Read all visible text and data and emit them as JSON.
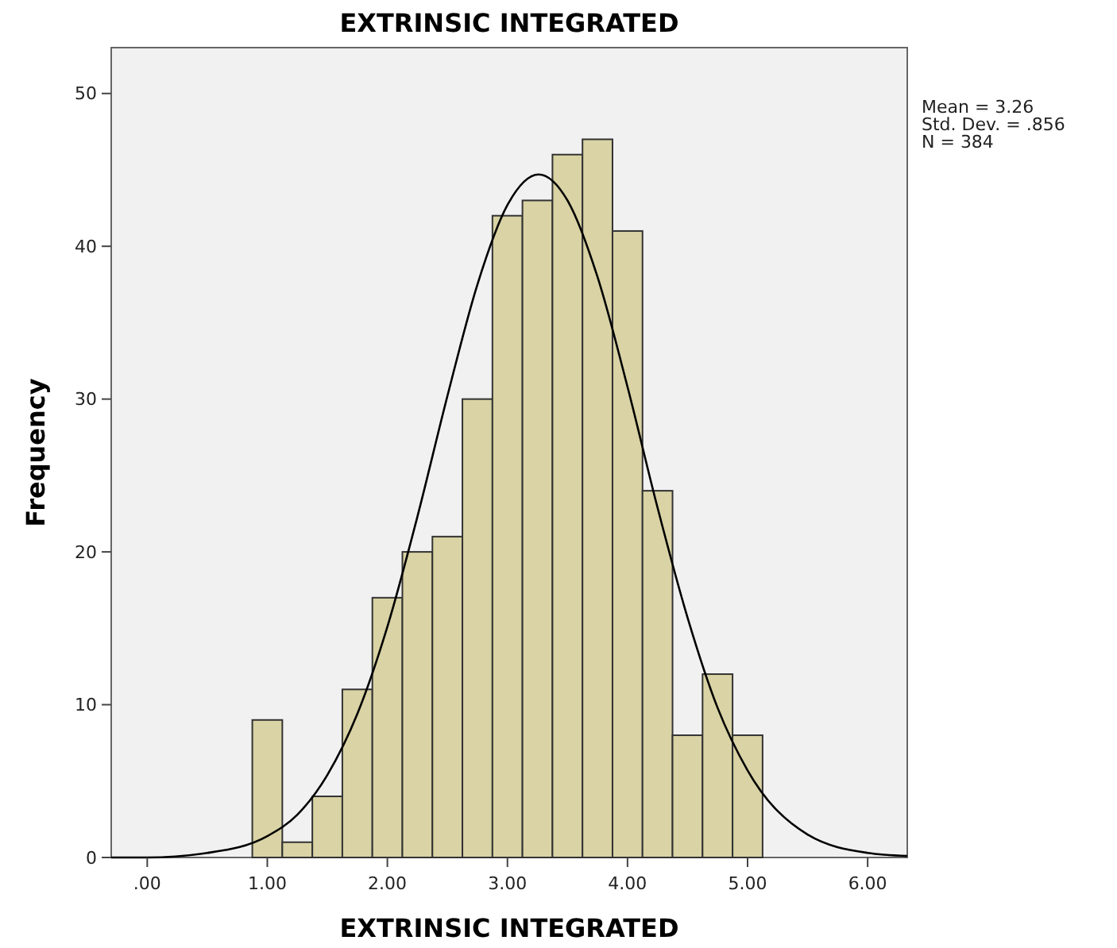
{
  "chart_data": {
    "type": "histogram",
    "title": "EXTRINSIC INTEGRATED",
    "xlabel": "EXTRINSIC INTEGRATED",
    "ylabel": "Frequency",
    "bins": [
      0.875,
      1.125,
      1.375,
      1.625,
      1.875,
      2.125,
      2.375,
      2.625,
      2.875,
      3.125,
      3.375,
      3.625,
      3.875,
      4.125,
      4.375,
      4.625,
      4.875,
      5.125
    ],
    "values": [
      9,
      1,
      4,
      11,
      17,
      20,
      21,
      30,
      42,
      43,
      46,
      47,
      41,
      24,
      8,
      12,
      8
    ],
    "color": "#d9d3a5",
    "series": [
      {
        "type": "line",
        "color": "#000000",
        "x": [
          -0.3,
          0,
          0.5,
          1,
          1.25,
          1.5,
          1.75,
          2,
          2.25,
          2.5,
          2.75,
          3,
          3.26,
          3.5,
          3.75,
          4,
          4.25,
          4.5,
          4.75,
          5,
          5.5,
          6,
          6.33
        ],
        "values": [
          0,
          0,
          0.3,
          1.4,
          2.8,
          5.4,
          9.4,
          15.1,
          22.3,
          30.2,
          37.5,
          42.7,
          44.7,
          43.0,
          38.0,
          30.8,
          22.9,
          15.7,
          9.8,
          5.7,
          1.5,
          0.3,
          0.1
        ]
      }
    ],
    "xlim": [
      -0.3,
      6.33
    ],
    "ylim": [
      0,
      53
    ],
    "xticks": [
      {
        "value": 0,
        "label": ".00"
      },
      {
        "value": 1,
        "label": "1.00"
      },
      {
        "value": 2,
        "label": "2.00"
      },
      {
        "value": 3,
        "label": "3.00"
      },
      {
        "value": 4,
        "label": "4.00"
      },
      {
        "value": 5,
        "label": "5.00"
      },
      {
        "value": 6,
        "label": "6.00"
      }
    ],
    "yticks": [
      0,
      10,
      20,
      30,
      40,
      50
    ],
    "annotations": [
      "Mean = 3.26",
      "Std. Dev. = .856",
      "N = 384"
    ]
  }
}
